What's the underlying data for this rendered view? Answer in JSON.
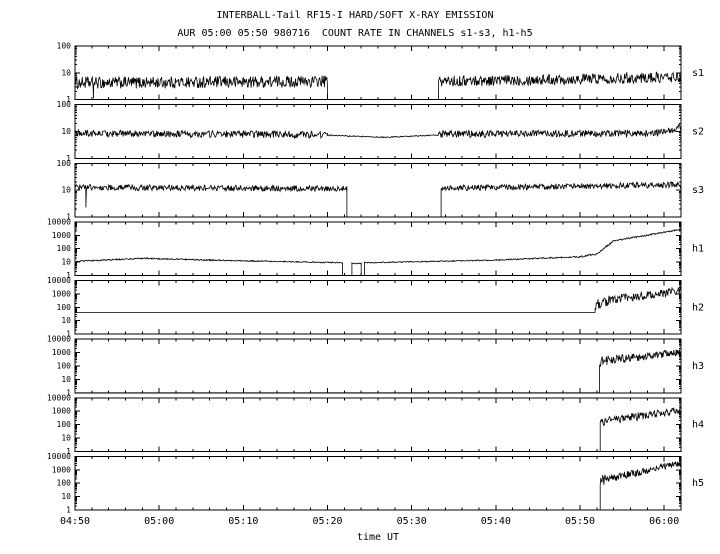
{
  "colors": {
    "foreground": "#000000",
    "background": "#ffffff"
  },
  "chart_data": {
    "type": "line",
    "title": "INTERBALL-Tail RF15-I HARD/SOFT X-RAY EMISSION",
    "subtitle": "AUR 05:00 05:50 980716  COUNT RATE IN CHANNELS s1-s3, h1-h5",
    "xlabel": "time UT",
    "grid": false,
    "legend": "none",
    "x_axis": {
      "label": "time UT",
      "t_min": 0,
      "t_max": 72,
      "minor_step": 2,
      "ticks": [
        {
          "t": 0,
          "label": "04:50"
        },
        {
          "t": 10,
          "label": "05:00"
        },
        {
          "t": 20,
          "label": "05:10"
        },
        {
          "t": 30,
          "label": "05:20"
        },
        {
          "t": 40,
          "label": "05:30"
        },
        {
          "t": 50,
          "label": "05:40"
        },
        {
          "t": 60,
          "label": "05:50"
        },
        {
          "t": 70,
          "label": "06:00"
        }
      ]
    },
    "panels": [
      {
        "label": "s1",
        "ylim": [
          1,
          100
        ],
        "decades": 2,
        "yticks": [
          "1",
          "10",
          "100"
        ],
        "segments": [
          {
            "type": "noisy",
            "t0": 0,
            "t1": 30,
            "log0": 0.62,
            "log1": 0.68,
            "amp": 0.22,
            "spikes": [
              {
                "t": 2.2,
                "log": 0.05
              }
            ]
          },
          {
            "type": "flat",
            "t0": 30,
            "t1": 43.2,
            "log0": 0
          },
          {
            "type": "noisy",
            "t0": 43.2,
            "t1": 72,
            "log0": 0.68,
            "log1": 0.84,
            "amp": 0.2
          }
        ]
      },
      {
        "label": "s2",
        "ylim": [
          1,
          100
        ],
        "decades": 2,
        "yticks": [
          "1",
          "10",
          "100"
        ],
        "segments": [
          {
            "type": "noisy",
            "t0": 0,
            "t1": 30,
            "log0": 0.93,
            "log1": 0.88,
            "amp": 0.13
          },
          {
            "type": "noisy",
            "t0": 30,
            "t1": 37,
            "log0": 0.86,
            "log1": 0.78,
            "amp": 0.02
          },
          {
            "type": "noisy",
            "t0": 37,
            "t1": 43.2,
            "log0": 0.78,
            "log1": 0.87,
            "amp": 0.02
          },
          {
            "type": "noisy",
            "t0": 43.2,
            "t1": 69,
            "log0": 0.9,
            "log1": 0.93,
            "amp": 0.13
          },
          {
            "type": "noisy",
            "t0": 69,
            "t1": 72,
            "log0": 0.93,
            "log1": 1.15,
            "amp": 0.13
          }
        ]
      },
      {
        "label": "s3",
        "ylim": [
          1,
          100
        ],
        "decades": 2,
        "yticks": [
          "1",
          "10",
          "100"
        ],
        "segments": [
          {
            "type": "noisy",
            "t0": 0,
            "t1": 32.3,
            "log0": 1.1,
            "log1": 1.05,
            "amp": 0.11,
            "spikes": [
              {
                "t": 1.3,
                "log": 0.35
              }
            ]
          },
          {
            "type": "flat",
            "t0": 32.3,
            "t1": 43.5,
            "log0": 0
          },
          {
            "type": "noisy",
            "t0": 43.5,
            "t1": 72,
            "log0": 1.07,
            "log1": 1.2,
            "amp": 0.11
          }
        ]
      },
      {
        "label": "h1",
        "ylim": [
          1,
          10000
        ],
        "decades": 4,
        "yticks": [
          "1",
          "10",
          "100",
          "1000",
          "10000"
        ],
        "segments": [
          {
            "type": "noisy",
            "t0": 0,
            "t1": 8,
            "log0": 1.05,
            "log1": 1.28,
            "amp": 0.05
          },
          {
            "type": "noisy",
            "t0": 8,
            "t1": 18,
            "log0": 1.28,
            "log1": 1.12,
            "amp": 0.05
          },
          {
            "type": "noisy",
            "t0": 18,
            "t1": 31.8,
            "log0": 1.12,
            "log1": 0.95,
            "amp": 0.04
          },
          {
            "type": "flat",
            "t0": 31.8,
            "t1": 32.9,
            "log0": 0
          },
          {
            "type": "noisy",
            "t0": 32.9,
            "t1": 34,
            "log0": 0.9,
            "log1": 0.9,
            "amp": 0.03
          },
          {
            "type": "flat",
            "t0": 34,
            "t1": 34.4,
            "log0": 0
          },
          {
            "type": "noisy",
            "t0": 34.4,
            "t1": 50,
            "log0": 0.95,
            "log1": 1.15,
            "amp": 0.04
          },
          {
            "type": "noisy",
            "t0": 50,
            "t1": 60,
            "log0": 1.15,
            "log1": 1.4,
            "amp": 0.05
          },
          {
            "type": "noisy",
            "t0": 60,
            "t1": 62,
            "log0": 1.4,
            "log1": 1.6,
            "amp": 0.06
          },
          {
            "type": "noisy",
            "t0": 62,
            "t1": 64,
            "log0": 1.6,
            "log1": 2.6,
            "amp": 0.07
          },
          {
            "type": "noisy",
            "t0": 64,
            "t1": 68,
            "log0": 2.6,
            "log1": 3.0,
            "amp": 0.05
          },
          {
            "type": "noisy",
            "t0": 68,
            "t1": 72,
            "log0": 3.0,
            "log1": 3.45,
            "amp": 0.05
          }
        ]
      },
      {
        "label": "h2",
        "ylim": [
          1,
          10000
        ],
        "decades": 4,
        "yticks": [
          "1",
          "10",
          "100",
          "1000",
          "10000"
        ],
        "segments": [
          {
            "type": "flat",
            "t0": 0,
            "t1": 61.8,
            "log0": 1.62
          },
          {
            "type": "noisy",
            "t0": 61.8,
            "t1": 63.5,
            "log0": 2.3,
            "log1": 2.6,
            "amp": 0.5
          },
          {
            "type": "noisy",
            "t0": 63.5,
            "t1": 68,
            "log0": 2.6,
            "log1": 2.9,
            "amp": 0.35
          },
          {
            "type": "noisy",
            "t0": 68,
            "t1": 72,
            "log0": 2.9,
            "log1": 3.25,
            "amp": 0.3
          }
        ]
      },
      {
        "label": "h3",
        "ylim": [
          1,
          10000
        ],
        "decades": 4,
        "yticks": [
          "1",
          "10",
          "100",
          "1000",
          "10000"
        ],
        "segments": [
          {
            "type": "flat",
            "t0": 0,
            "t1": 62.3,
            "log0": 0
          },
          {
            "type": "noisy",
            "t0": 62.3,
            "t1": 63.2,
            "log0": 2.35,
            "log1": 2.45,
            "amp": 0.45
          },
          {
            "type": "noisy",
            "t0": 63.2,
            "t1": 68,
            "log0": 2.45,
            "log1": 2.7,
            "amp": 0.3
          },
          {
            "type": "noisy",
            "t0": 68,
            "t1": 72,
            "log0": 2.7,
            "log1": 3.05,
            "amp": 0.28
          }
        ]
      },
      {
        "label": "h4",
        "ylim": [
          1,
          10000
        ],
        "decades": 4,
        "yticks": [
          "1",
          "10",
          "100",
          "1000",
          "10000"
        ],
        "segments": [
          {
            "type": "flat",
            "t0": 0,
            "t1": 62.4,
            "log0": 0
          },
          {
            "type": "noisy",
            "t0": 62.4,
            "t1": 63.2,
            "log0": 2.15,
            "log1": 2.3,
            "amp": 0.4
          },
          {
            "type": "noisy",
            "t0": 63.2,
            "t1": 68,
            "log0": 2.3,
            "log1": 2.7,
            "amp": 0.3
          },
          {
            "type": "noisy",
            "t0": 68,
            "t1": 72,
            "log0": 2.7,
            "log1": 3.1,
            "amp": 0.28
          }
        ]
      },
      {
        "label": "h5",
        "ylim": [
          1,
          10000
        ],
        "decades": 4,
        "yticks": [
          "1",
          "10",
          "100",
          "1000",
          "10000"
        ],
        "segments": [
          {
            "type": "flat",
            "t0": 0,
            "t1": 62.4,
            "log0": 0
          },
          {
            "type": "noisy",
            "t0": 62.4,
            "t1": 63.2,
            "log0": 2.1,
            "log1": 2.3,
            "amp": 0.4
          },
          {
            "type": "noisy",
            "t0": 63.2,
            "t1": 68,
            "log0": 2.3,
            "log1": 2.95,
            "amp": 0.28
          },
          {
            "type": "noisy",
            "t0": 68,
            "t1": 72,
            "log0": 2.95,
            "log1": 3.5,
            "amp": 0.25
          }
        ]
      }
    ]
  }
}
